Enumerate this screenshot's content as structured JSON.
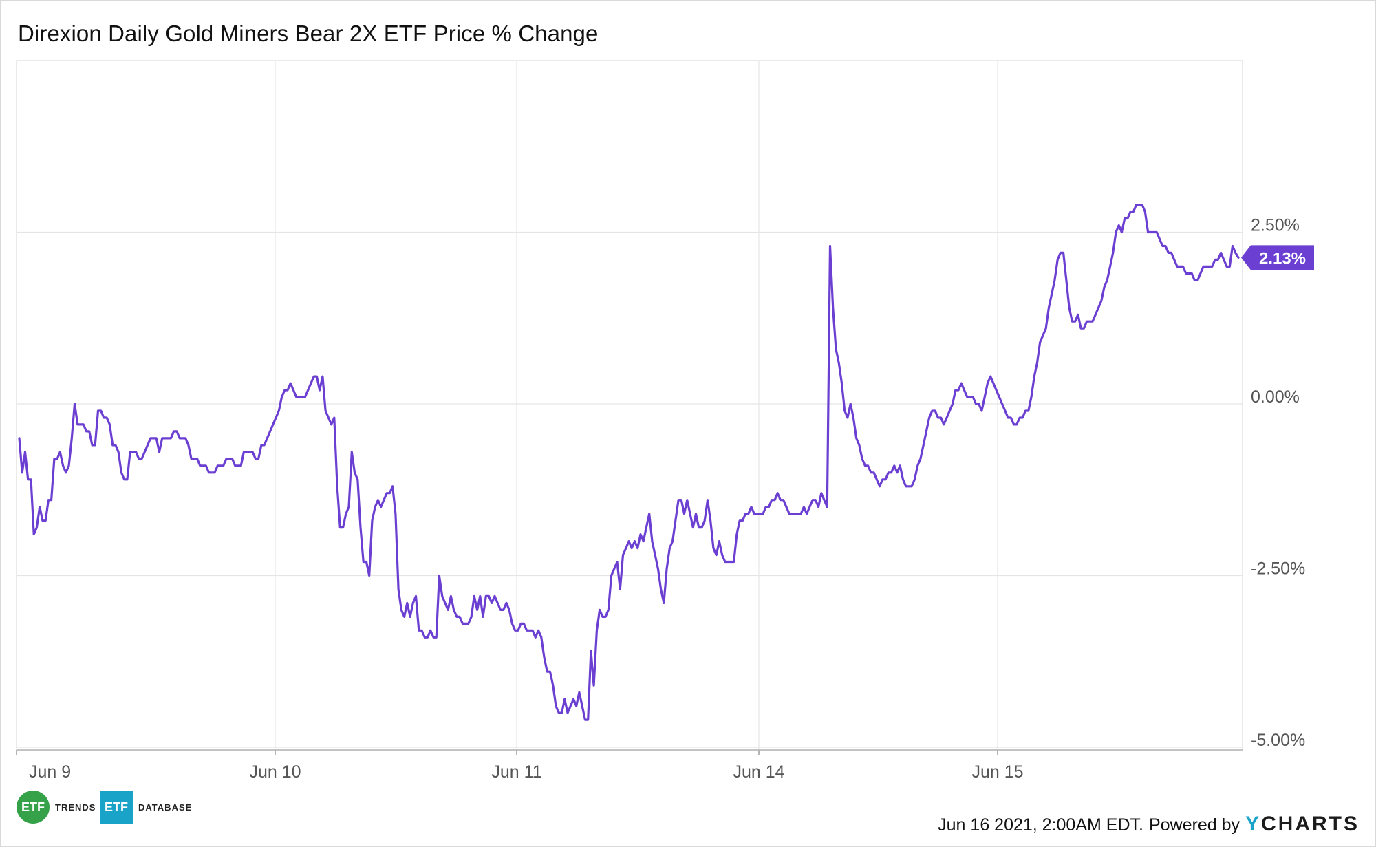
{
  "title": "Direxion Daily Gold Miners Bear 2X ETF Price % Change",
  "footer": {
    "timestamp": "Jun 16 2021, 2:00AM EDT.",
    "powered_by": "Powered by",
    "ycharts_y": "Y",
    "ycharts_rest": "CHARTS"
  },
  "brands": {
    "trends_logo": "ETF",
    "trends_text": "TRENDS",
    "database_logo": "ETF",
    "database_text": "DATABASE"
  },
  "chart_data": {
    "type": "line",
    "title": "Direxion Daily Gold Miners Bear 2X ETF Price % Change",
    "xlabel": "",
    "ylabel": "",
    "ylim": [
      -5.0,
      5.0
    ],
    "y_ticks": [
      "2.50%",
      "0.00%",
      "-2.50%",
      "-5.00%"
    ],
    "y_tick_values": [
      2.5,
      0.0,
      -2.5,
      -5.0
    ],
    "x_ticks": [
      "Jun 9",
      "Jun 10",
      "Jun 11",
      "Jun 14",
      "Jun 15"
    ],
    "grid": true,
    "line_color": "#6b3fd1",
    "last_value_label": "2.13%",
    "series": [
      {
        "values": [
          -0.5,
          -1.0,
          -0.7,
          -1.1,
          -1.1,
          -1.9,
          -1.8,
          -1.5,
          -1.7,
          -1.7,
          -1.4,
          -1.4,
          -0.8,
          -0.8,
          -0.7,
          -0.9,
          -1.0,
          -0.9,
          -0.5,
          0.0,
          -0.3,
          -0.3,
          -0.3,
          -0.4,
          -0.4,
          -0.6,
          -0.6,
          -0.1,
          -0.1,
          -0.2,
          -0.2,
          -0.3,
          -0.6,
          -0.6,
          -0.7,
          -1.0,
          -1.1,
          -1.1,
          -0.7,
          -0.7,
          -0.7,
          -0.8,
          -0.8,
          -0.7,
          -0.6,
          -0.5,
          -0.5,
          -0.5,
          -0.7,
          -0.5,
          -0.5,
          -0.5,
          -0.5,
          -0.4,
          -0.4,
          -0.5,
          -0.5,
          -0.5,
          -0.6,
          -0.8,
          -0.8,
          -0.8,
          -0.9,
          -0.9,
          -0.9,
          -1.0,
          -1.0,
          -1.0,
          -0.9,
          -0.9,
          -0.9,
          -0.8,
          -0.8,
          -0.8,
          -0.9,
          -0.9,
          -0.9,
          -0.7,
          -0.7,
          -0.7,
          -0.7,
          -0.8,
          -0.8,
          -0.6,
          -0.6,
          -0.5,
          -0.4,
          -0.3,
          -0.2,
          -0.1,
          0.1,
          0.2,
          0.2,
          0.3,
          0.2,
          0.1,
          0.1,
          0.1,
          0.1,
          0.2,
          0.3,
          0.4,
          0.4,
          0.2,
          0.4,
          -0.1,
          -0.2,
          -0.3,
          -0.2,
          -1.2,
          -1.8,
          -1.8,
          -1.6,
          -1.5,
          -0.7,
          -1.0,
          -1.1,
          -1.8,
          -2.3,
          -2.3,
          -2.5,
          -1.7,
          -1.5,
          -1.4,
          -1.5,
          -1.4,
          -1.3,
          -1.3,
          -1.2,
          -1.6,
          -2.7,
          -3.0,
          -3.1,
          -2.9,
          -3.1,
          -2.9,
          -2.8,
          -3.3,
          -3.3,
          -3.4,
          -3.4,
          -3.3,
          -3.4,
          -3.4,
          -2.5,
          -2.8,
          -2.9,
          -3.0,
          -2.8,
          -3.0,
          -3.1,
          -3.1,
          -3.2,
          -3.2,
          -3.2,
          -3.1,
          -2.8,
          -3.0,
          -2.8,
          -3.1,
          -2.8,
          -2.8,
          -2.9,
          -2.8,
          -2.9,
          -3.0,
          -3.0,
          -2.9,
          -3.0,
          -3.2,
          -3.3,
          -3.3,
          -3.2,
          -3.2,
          -3.3,
          -3.3,
          -3.3,
          -3.4,
          -3.3,
          -3.4,
          -3.7,
          -3.9,
          -3.9,
          -4.1,
          -4.4,
          -4.5,
          -4.5,
          -4.3,
          -4.5,
          -4.4,
          -4.3,
          -4.4,
          -4.2,
          -4.4,
          -4.6,
          -4.6,
          -3.6,
          -4.1,
          -3.3,
          -3.0,
          -3.1,
          -3.1,
          -3.0,
          -2.5,
          -2.4,
          -2.3,
          -2.7,
          -2.2,
          -2.1,
          -2.0,
          -2.1,
          -2.0,
          -2.1,
          -1.9,
          -2.0,
          -1.8,
          -1.6,
          -2.0,
          -2.2,
          -2.4,
          -2.7,
          -2.9,
          -2.4,
          -2.1,
          -2.0,
          -1.7,
          -1.4,
          -1.4,
          -1.6,
          -1.4,
          -1.6,
          -1.8,
          -1.6,
          -1.8,
          -1.8,
          -1.7,
          -1.4,
          -1.7,
          -2.1,
          -2.2,
          -2.0,
          -2.2,
          -2.3,
          -2.3,
          -2.3,
          -2.3,
          -1.9,
          -1.7,
          -1.7,
          -1.6,
          -1.6,
          -1.5,
          -1.6,
          -1.6,
          -1.6,
          -1.6,
          -1.5,
          -1.5,
          -1.4,
          -1.4,
          -1.3,
          -1.4,
          -1.4,
          -1.5,
          -1.6,
          -1.6,
          -1.6,
          -1.6,
          -1.6,
          -1.5,
          -1.6,
          -1.5,
          -1.4,
          -1.4,
          -1.5,
          -1.3,
          -1.4,
          -1.5,
          2.3,
          1.4,
          0.8,
          0.6,
          0.3,
          -0.1,
          -0.2,
          0.0,
          -0.2,
          -0.5,
          -0.6,
          -0.8,
          -0.9,
          -0.9,
          -1.0,
          -1.0,
          -1.1,
          -1.2,
          -1.1,
          -1.1,
          -1.0,
          -1.0,
          -0.9,
          -1.0,
          -0.9,
          -1.1,
          -1.2,
          -1.2,
          -1.2,
          -1.1,
          -0.9,
          -0.8,
          -0.6,
          -0.4,
          -0.2,
          -0.1,
          -0.1,
          -0.2,
          -0.2,
          -0.3,
          -0.2,
          -0.1,
          0.0,
          0.2,
          0.2,
          0.3,
          0.2,
          0.1,
          0.1,
          0.1,
          0.0,
          0.0,
          -0.1,
          0.1,
          0.3,
          0.4,
          0.3,
          0.2,
          0.1,
          0.0,
          -0.1,
          -0.2,
          -0.2,
          -0.3,
          -0.3,
          -0.2,
          -0.2,
          -0.1,
          -0.1,
          0.1,
          0.4,
          0.6,
          0.9,
          1.0,
          1.1,
          1.4,
          1.6,
          1.8,
          2.1,
          2.2,
          2.2,
          1.8,
          1.4,
          1.2,
          1.2,
          1.3,
          1.1,
          1.1,
          1.2,
          1.2,
          1.2,
          1.3,
          1.4,
          1.5,
          1.7,
          1.8,
          2.0,
          2.2,
          2.5,
          2.6,
          2.5,
          2.7,
          2.7,
          2.8,
          2.8,
          2.9,
          2.9,
          2.9,
          2.8,
          2.5,
          2.5,
          2.5,
          2.5,
          2.4,
          2.3,
          2.3,
          2.2,
          2.2,
          2.1,
          2.0,
          2.0,
          2.0,
          1.9,
          1.9,
          1.9,
          1.8,
          1.8,
          1.9,
          2.0,
          2.0,
          2.0,
          2.0,
          2.1,
          2.1,
          2.2,
          2.1,
          2.0,
          2.0,
          2.3,
          2.2,
          2.13
        ]
      }
    ]
  }
}
